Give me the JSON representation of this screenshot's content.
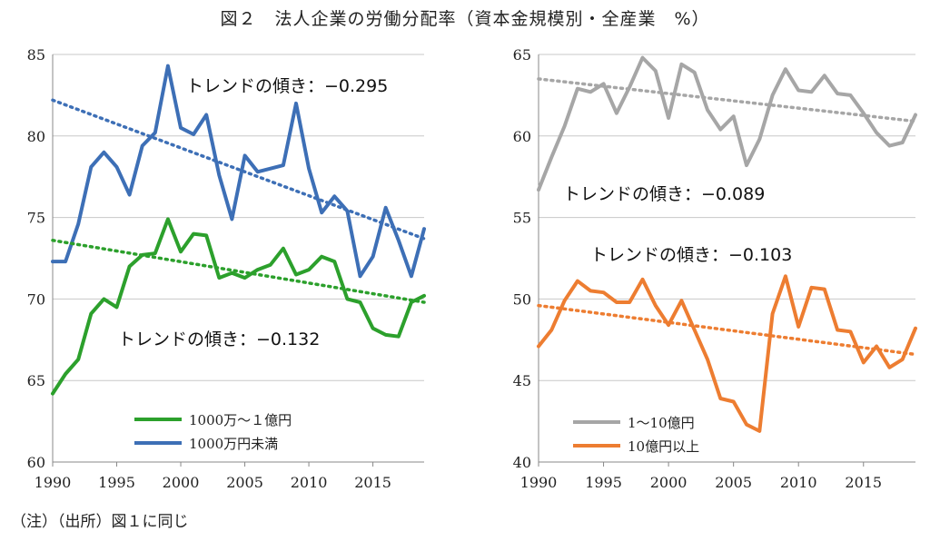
{
  "title": "図２　法人企業の労働分配率（資本金規模別・全産業　%）",
  "note": "（注）（出所）図１に同じ",
  "chart_data": [
    {
      "type": "line",
      "x": [
        1990,
        1991,
        1992,
        1993,
        1994,
        1995,
        1996,
        1997,
        1998,
        1999,
        2000,
        2001,
        2002,
        2003,
        2004,
        2005,
        2006,
        2007,
        2008,
        2009,
        2010,
        2011,
        2012,
        2013,
        2014,
        2015,
        2016,
        2017,
        2018,
        2019
      ],
      "ylim": [
        60,
        85
      ],
      "yticks": [
        60,
        65,
        70,
        75,
        80,
        85
      ],
      "xticks": [
        1990,
        1995,
        2000,
        2005,
        2010,
        2015
      ],
      "grid": true,
      "legend_position": "bottom-center",
      "series": [
        {
          "name": "1000万～１億円",
          "color": "#2ca02c",
          "values": [
            64.2,
            65.4,
            66.3,
            69.1,
            70.0,
            69.5,
            72.0,
            72.7,
            72.8,
            74.9,
            72.9,
            74.0,
            73.9,
            71.3,
            71.6,
            71.3,
            71.8,
            72.1,
            73.1,
            71.5,
            71.8,
            72.6,
            72.3,
            70.0,
            69.8,
            68.2,
            67.8,
            67.7,
            69.8,
            70.2
          ]
        },
        {
          "name": "1000万円未満",
          "color": "#3d6fb6",
          "values": [
            72.3,
            72.3,
            74.6,
            78.1,
            79.0,
            78.1,
            76.4,
            79.4,
            80.2,
            84.3,
            80.5,
            80.1,
            81.3,
            77.6,
            74.9,
            78.8,
            77.8,
            78.0,
            78.2,
            82.0,
            78.0,
            75.3,
            76.3,
            75.4,
            71.4,
            72.6,
            75.6,
            73.6,
            71.4,
            74.3
          ]
        }
      ],
      "trendlines": [
        {
          "series": "1000万円未満",
          "color": "#3d6fb6",
          "start": 82.2,
          "end": 73.7
        },
        {
          "series": "1000万～１億円",
          "color": "#2ca02c",
          "start": 73.6,
          "end": 69.8
        }
      ],
      "annotations": [
        "トレンドの傾き：−0.295",
        "トレンドの傾き：−0.132"
      ]
    },
    {
      "type": "line",
      "x": [
        1990,
        1991,
        1992,
        1993,
        1994,
        1995,
        1996,
        1997,
        1998,
        1999,
        2000,
        2001,
        2002,
        2003,
        2004,
        2005,
        2006,
        2007,
        2008,
        2009,
        2010,
        2011,
        2012,
        2013,
        2014,
        2015,
        2016,
        2017,
        2018,
        2019
      ],
      "ylim": [
        40,
        65
      ],
      "yticks": [
        40,
        45,
        50,
        55,
        60,
        65
      ],
      "xticks": [
        1990,
        1995,
        2000,
        2005,
        2010,
        2015
      ],
      "grid": true,
      "legend_position": "bottom-left",
      "series": [
        {
          "name": "1～10億円",
          "color": "#a6a6a6",
          "values": [
            56.7,
            58.7,
            60.6,
            62.9,
            62.7,
            63.2,
            61.4,
            63.0,
            64.8,
            64.0,
            61.1,
            64.4,
            63.9,
            61.6,
            60.4,
            61.2,
            58.2,
            59.8,
            62.5,
            64.1,
            62.8,
            62.7,
            63.7,
            62.6,
            62.5,
            61.4,
            60.2,
            59.4,
            59.6,
            61.3
          ]
        },
        {
          "name": "10億円以上",
          "color": "#ed7d31",
          "values": [
            47.1,
            48.1,
            49.9,
            51.1,
            50.5,
            50.4,
            49.8,
            49.8,
            51.2,
            49.6,
            48.4,
            49.9,
            48.1,
            46.3,
            43.9,
            43.7,
            42.3,
            41.9,
            49.1,
            51.4,
            48.3,
            50.7,
            50.6,
            48.1,
            48.0,
            46.1,
            47.1,
            45.8,
            46.3,
            48.2
          ]
        }
      ],
      "trendlines": [
        {
          "series": "1～10億円",
          "color": "#a6a6a6",
          "start": 63.5,
          "end": 60.9
        },
        {
          "series": "10億円以上",
          "color": "#ed7d31",
          "start": 49.6,
          "end": 46.6
        }
      ],
      "annotations": [
        "トレンドの傾き：−0.089",
        "トレンドの傾き：−0.103"
      ]
    }
  ]
}
